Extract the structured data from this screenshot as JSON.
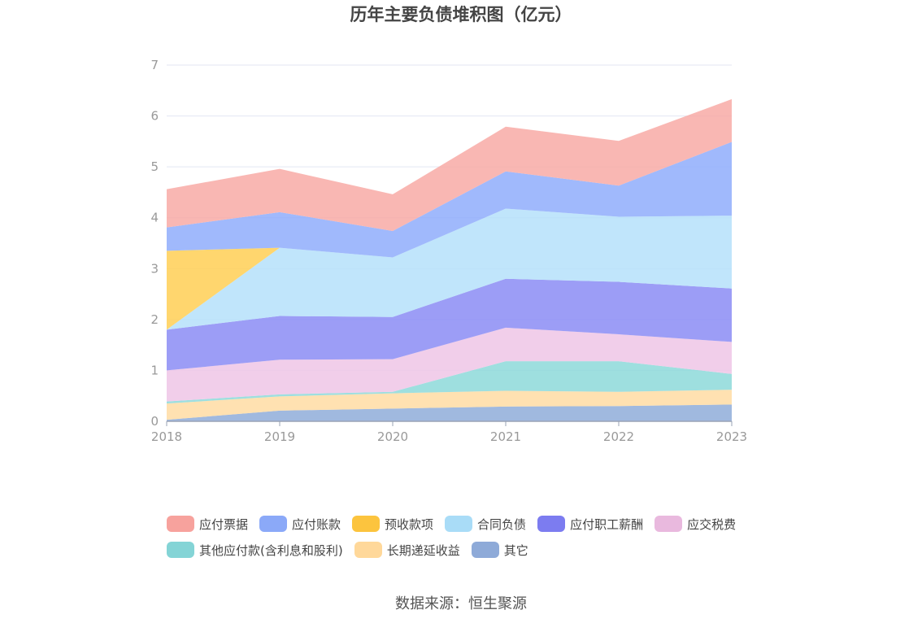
{
  "chart_data": {
    "type": "area",
    "stacked": true,
    "title": "历年主要负债堆积图（亿元）",
    "x": [
      "2018",
      "2019",
      "2020",
      "2021",
      "2022",
      "2023"
    ],
    "ylim": [
      0,
      7
    ],
    "yticks": [
      "0",
      "1",
      "2",
      "3",
      "4",
      "5",
      "6",
      "7"
    ],
    "grid": true,
    "legend_position": "bottom",
    "series": [
      {
        "name": "其它",
        "color": "#8fadd9",
        "values": [
          0.03,
          0.21,
          0.25,
          0.29,
          0.3,
          0.33
        ]
      },
      {
        "name": "长期递延收益",
        "color": "#ffdca3",
        "values": [
          0.32,
          0.28,
          0.3,
          0.31,
          0.28,
          0.29
        ]
      },
      {
        "name": "其他应付款(含利息和股利)",
        "color": "#8dd9d9",
        "values": [
          0.04,
          0.04,
          0.03,
          0.58,
          0.6,
          0.31
        ]
      },
      {
        "name": "应交税费",
        "color": "#efc5e6",
        "values": [
          0.61,
          0.68,
          0.64,
          0.66,
          0.53,
          0.63
        ]
      },
      {
        "name": "应付职工薪酬",
        "color": "#8b8cf5",
        "values": [
          0.8,
          0.86,
          0.83,
          0.96,
          1.03,
          1.05
        ]
      },
      {
        "name": "合同负债",
        "color": "#b5e1fa",
        "values": [
          0.0,
          1.34,
          1.17,
          1.38,
          1.28,
          1.43
        ]
      },
      {
        "name": "预收款项",
        "color": "#ffcf55",
        "values": [
          1.55,
          0.0,
          0.0,
          0.0,
          0.0,
          0.0
        ]
      },
      {
        "name": "应付账款",
        "color": "#8fadfc",
        "values": [
          0.46,
          0.7,
          0.52,
          0.73,
          0.61,
          1.45
        ]
      },
      {
        "name": "应付票据",
        "color": "#f8aaa6",
        "values": [
          0.75,
          0.85,
          0.72,
          0.88,
          0.88,
          0.84
        ]
      }
    ]
  },
  "legend": [
    {
      "label": "应付票据",
      "color": "#f7a29d"
    },
    {
      "label": "应付账款",
      "color": "#8ba9f8"
    },
    {
      "label": "预收款项",
      "color": "#fcc43e"
    },
    {
      "label": "合同负债",
      "color": "#a9dcf7"
    },
    {
      "label": "应付职工薪酬",
      "color": "#7c7cf0"
    },
    {
      "label": "应交税费",
      "color": "#e9b9de"
    },
    {
      "label": "其他应付款(含利息和股利)",
      "color": "#84d4d6"
    },
    {
      "label": "长期递延收益",
      "color": "#ffd89a"
    },
    {
      "label": "其它",
      "color": "#8eaad8"
    }
  ],
  "source_text": "数据来源：恒生聚源"
}
